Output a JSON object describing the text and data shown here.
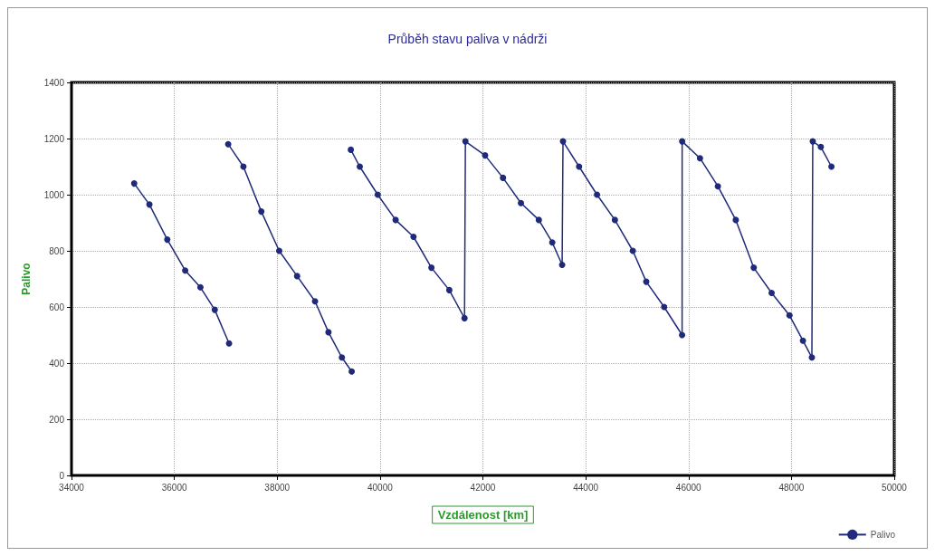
{
  "chart_data": {
    "type": "line",
    "title": "Průběh stavu paliva v nádrži",
    "xlabel": "Vzdálenost [km]",
    "ylabel": "Palivo",
    "x": [
      35219,
      35515,
      35863,
      36211,
      36507,
      36786,
      37064,
      37050,
      37047,
      37343,
      37691,
      38039,
      38387,
      38736,
      38997,
      39258,
      39449,
      39440,
      39432,
      39606,
      39955,
      40303,
      40651,
      40999,
      41347,
      41643,
      41660,
      42043,
      42391,
      42740,
      43088,
      43349,
      43541,
      43558,
      43871,
      44219,
      44567,
      44916,
      45177,
      45525,
      45874,
      45875,
      46222,
      46570,
      46918,
      47267,
      47615,
      47963,
      48224,
      48398,
      48415,
      48572,
      48778
    ],
    "series": [
      {
        "name": "Palivo",
        "color": "#1f2a7a",
        "values": [
          1040,
          965,
          840,
          730,
          670,
          590,
          470,
          null,
          1180,
          1100,
          940,
          800,
          710,
          620,
          510,
          420,
          370,
          null,
          1160,
          1100,
          1000,
          910,
          850,
          740,
          660,
          560,
          1190,
          1140,
          1060,
          970,
          910,
          830,
          750,
          1190,
          1100,
          1000,
          910,
          800,
          690,
          600,
          500,
          1190,
          1130,
          1030,
          910,
          740,
          650,
          570,
          480,
          420,
          1190,
          1170,
          1100
        ]
      }
    ],
    "xlim": [
      34000,
      50000
    ],
    "xticks": [
      34000,
      36000,
      38000,
      40000,
      42000,
      44000,
      46000,
      48000,
      50000
    ],
    "ylim": [
      0,
      1400
    ],
    "yticks": [
      0,
      200,
      400,
      600,
      800,
      1000,
      1200,
      1400
    ],
    "grid": true,
    "legend": "bottom right",
    "marker": "circle",
    "line_style": "solid"
  }
}
